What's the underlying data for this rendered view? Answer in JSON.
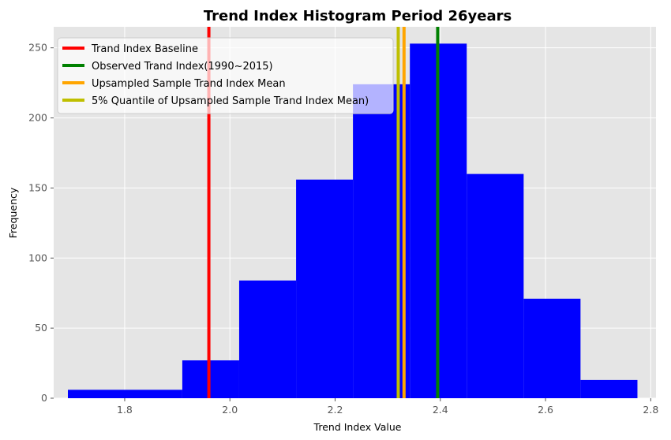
{
  "chart_data": {
    "type": "bar",
    "title": "Trend Index Histogram Period 26years",
    "xlabel": "Trend Index Value",
    "ylabel": "Frequency",
    "xlim": [
      1.665,
      2.81
    ],
    "ylim": [
      0,
      265
    ],
    "xticks": [
      1.8,
      2.0,
      2.2,
      2.4,
      2.6,
      2.8
    ],
    "yticks": [
      0,
      50,
      100,
      150,
      200,
      250
    ],
    "xtick_labels": [
      "1.8",
      "2.0",
      "2.2",
      "2.4",
      "2.6",
      "2.8"
    ],
    "ytick_labels": [
      "0",
      "50",
      "100",
      "150",
      "200",
      "250"
    ],
    "grid": true,
    "bins": [
      {
        "start": 1.692,
        "end": 1.9095,
        "count": 6
      },
      {
        "start": 1.9095,
        "end": 2.0176,
        "count": 27
      },
      {
        "start": 2.0176,
        "end": 2.1258,
        "count": 84
      },
      {
        "start": 2.1258,
        "end": 2.2339,
        "count": 156
      },
      {
        "start": 2.2339,
        "end": 2.3421,
        "count": 224
      },
      {
        "start": 2.3421,
        "end": 2.4502,
        "count": 253
      },
      {
        "start": 2.4502,
        "end": 2.5584,
        "count": 160
      },
      {
        "start": 2.5584,
        "end": 2.6665,
        "count": 71
      },
      {
        "start": 2.6665,
        "end": 2.7747,
        "count": 13
      }
    ],
    "bar_color": "#0000ff",
    "vlines": [
      {
        "name": "Trand Index Baseline",
        "x": 1.96,
        "color": "#ff0000"
      },
      {
        "name": "Observed Trand Index(1990~2015)",
        "x": 2.395,
        "color": "#008000"
      },
      {
        "name": "Upsampled Sample Trand Index Mean",
        "x": 2.331,
        "color": "#ffa500"
      },
      {
        "name": "5% Quantile of Upsampled Sample Trand Index Mean)",
        "x": 2.32,
        "color": "#bfbf00"
      }
    ],
    "legend_position": "upper-left"
  }
}
